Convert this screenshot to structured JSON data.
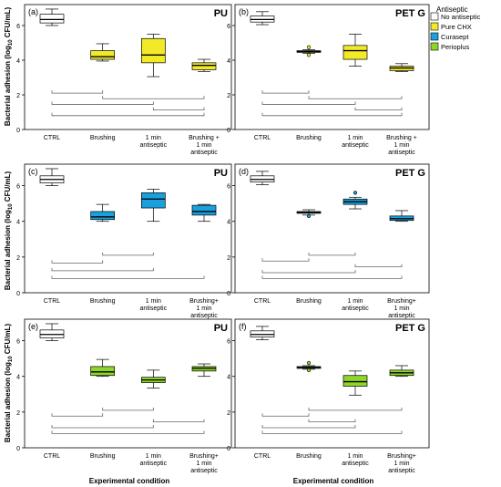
{
  "figure": {
    "ylabel_prefix": "Bacterial adhesion (log",
    "ylabel_sub": "10",
    "ylabel_suffix": " CFU/mL)",
    "xlabel": "Experimental condition",
    "legend": {
      "title": "Antiseptic",
      "entries": [
        {
          "label": "No antiseptic",
          "color": "#ffffff"
        },
        {
          "label": "Pure CHX",
          "color": "#f2ea28"
        },
        {
          "label": "Curasept",
          "color": "#1aa0dc"
        },
        {
          "label": "Perioplus",
          "color": "#8fd62a"
        }
      ]
    }
  },
  "chart_data": [
    {
      "type": "box",
      "panel": "(a)",
      "material": "PU",
      "ylim": [
        0,
        7
      ],
      "yticks": [
        0,
        2,
        4,
        6
      ],
      "categories": [
        "CTRL",
        "Brushing",
        "1 min antiseptic",
        "Brushing + 1 min antiseptic"
      ],
      "fills": [
        "#ffffff",
        "#f2ea28",
        "#f2ea28",
        "#f2ea28"
      ],
      "boxes": [
        {
          "min": 6.0,
          "q1": 6.15,
          "median": 6.35,
          "q3": 6.65,
          "max": 6.95
        },
        {
          "min": 3.95,
          "q1": 4.05,
          "median": 4.2,
          "q3": 4.55,
          "max": 4.95
        },
        {
          "min": 3.05,
          "q1": 3.85,
          "median": 4.3,
          "q3": 5.25,
          "max": 5.5
        },
        {
          "min": 3.35,
          "q1": 3.45,
          "median": 3.7,
          "q3": 3.85,
          "max": 4.05
        }
      ],
      "comparisons": [
        [
          0,
          1
        ],
        [
          1,
          3
        ],
        [
          0,
          2
        ],
        [
          2,
          3
        ],
        [
          0,
          3
        ]
      ]
    },
    {
      "type": "box",
      "panel": "(b)",
      "material": "PET G",
      "ylim": [
        0,
        7
      ],
      "yticks": [
        0,
        2,
        4,
        6
      ],
      "categories": [
        "CTRL",
        "Brushing",
        "1 min antiseptic",
        "Brushing + 1 min antiseptic"
      ],
      "fills": [
        "#ffffff",
        "#f2ea28",
        "#f2ea28",
        "#f2ea28"
      ],
      "boxes": [
        {
          "min": 6.05,
          "q1": 6.2,
          "median": 6.35,
          "q3": 6.55,
          "max": 6.8
        },
        {
          "min": 4.4,
          "q1": 4.45,
          "median": 4.5,
          "q3": 4.55,
          "max": 4.6,
          "outliers": [
            4.75,
            4.3
          ]
        },
        {
          "min": 3.65,
          "q1": 4.05,
          "median": 4.55,
          "q3": 4.85,
          "max": 5.5
        },
        {
          "min": 3.35,
          "q1": 3.4,
          "median": 3.55,
          "q3": 3.65,
          "max": 3.8
        }
      ],
      "comparisons": [
        [
          0,
          1
        ],
        [
          1,
          3
        ],
        [
          0,
          2
        ],
        [
          2,
          3
        ],
        [
          0,
          3
        ]
      ]
    },
    {
      "type": "box",
      "panel": "(c)",
      "material": "PU",
      "ylim": [
        0,
        7
      ],
      "yticks": [
        0,
        2,
        4,
        6
      ],
      "categories": [
        "CTRL",
        "Brushing",
        "1 min antiseptic",
        "Brushing+ 1 min antiseptic"
      ],
      "fills": [
        "#ffffff",
        "#1aa0dc",
        "#1aa0dc",
        "#1aa0dc"
      ],
      "boxes": [
        {
          "min": 6.0,
          "q1": 6.15,
          "median": 6.35,
          "q3": 6.55,
          "max": 6.95
        },
        {
          "min": 4.0,
          "q1": 4.1,
          "median": 4.25,
          "q3": 4.55,
          "max": 4.95
        },
        {
          "min": 4.0,
          "q1": 4.75,
          "median": 5.25,
          "q3": 5.6,
          "max": 5.8
        },
        {
          "min": 4.0,
          "q1": 4.35,
          "median": 4.55,
          "q3": 4.9,
          "max": 4.95
        }
      ],
      "comparisons": [
        [
          1,
          2
        ],
        [
          0,
          1
        ],
        [
          0,
          2
        ],
        [
          0,
          3
        ]
      ]
    },
    {
      "type": "box",
      "panel": "(d)",
      "material": "PET G",
      "ylim": [
        0,
        7
      ],
      "yticks": [
        0,
        2,
        4,
        6
      ],
      "categories": [
        "CTRL",
        "Brushing",
        "1 min antiseptic",
        "Brushing+ 1 min antiseptic"
      ],
      "fills": [
        "#ffffff",
        "#1aa0dc",
        "#1aa0dc",
        "#1aa0dc"
      ],
      "boxes": [
        {
          "min": 6.05,
          "q1": 6.2,
          "median": 6.35,
          "q3": 6.55,
          "max": 6.8
        },
        {
          "min": 4.35,
          "q1": 4.45,
          "median": 4.5,
          "q3": 4.55,
          "max": 4.65,
          "outliers": [
            4.3
          ]
        },
        {
          "min": 4.7,
          "q1": 4.95,
          "median": 5.1,
          "q3": 5.25,
          "max": 5.35,
          "outliers": [
            5.6
          ]
        },
        {
          "min": 4.0,
          "q1": 4.05,
          "median": 4.15,
          "q3": 4.3,
          "max": 4.6
        }
      ],
      "comparisons": [
        [
          1,
          2
        ],
        [
          0,
          1
        ],
        [
          2,
          3
        ],
        [
          0,
          2
        ],
        [
          0,
          3
        ]
      ]
    },
    {
      "type": "box",
      "panel": "(e)",
      "material": "PU",
      "ylim": [
        0,
        7
      ],
      "yticks": [
        0,
        2,
        4,
        6
      ],
      "categories": [
        "CTRL",
        "Brushing",
        "1 min antiseptic",
        "Brushing+ 1 min antiseptic"
      ],
      "fills": [
        "#ffffff",
        "#8fd62a",
        "#8fd62a",
        "#8fd62a"
      ],
      "boxes": [
        {
          "min": 6.0,
          "q1": 6.15,
          "median": 6.35,
          "q3": 6.6,
          "max": 6.95
        },
        {
          "min": 4.0,
          "q1": 4.05,
          "median": 4.25,
          "q3": 4.55,
          "max": 4.95
        },
        {
          "min": 3.35,
          "q1": 3.65,
          "median": 3.8,
          "q3": 3.95,
          "max": 4.35
        },
        {
          "min": 4.0,
          "q1": 4.3,
          "median": 4.45,
          "q3": 4.55,
          "max": 4.7
        }
      ],
      "comparisons": [
        [
          1,
          2
        ],
        [
          0,
          1
        ],
        [
          2,
          3
        ],
        [
          0,
          2
        ],
        [
          0,
          3
        ]
      ]
    },
    {
      "type": "box",
      "panel": "(f)",
      "material": "PET G",
      "ylim": [
        0,
        7
      ],
      "yticks": [
        0,
        2,
        4,
        6
      ],
      "categories": [
        "CTRL",
        "Brushing",
        "1 min antiseptic",
        "Brushing+ 1 min antiseptic"
      ],
      "fills": [
        "#ffffff",
        "#8fd62a",
        "#8fd62a",
        "#8fd62a"
      ],
      "boxes": [
        {
          "min": 6.05,
          "q1": 6.2,
          "median": 6.35,
          "q3": 6.55,
          "max": 6.8
        },
        {
          "min": 4.4,
          "q1": 4.45,
          "median": 4.5,
          "q3": 4.55,
          "max": 4.6,
          "outliers": [
            4.75,
            4.35
          ]
        },
        {
          "min": 2.95,
          "q1": 3.45,
          "median": 3.7,
          "q3": 4.05,
          "max": 4.3
        },
        {
          "min": 4.0,
          "q1": 4.05,
          "median": 4.2,
          "q3": 4.35,
          "max": 4.6
        }
      ],
      "comparisons": [
        [
          1,
          3
        ],
        [
          0,
          1
        ],
        [
          1,
          2
        ],
        [
          0,
          2
        ],
        [
          0,
          3
        ]
      ]
    }
  ]
}
